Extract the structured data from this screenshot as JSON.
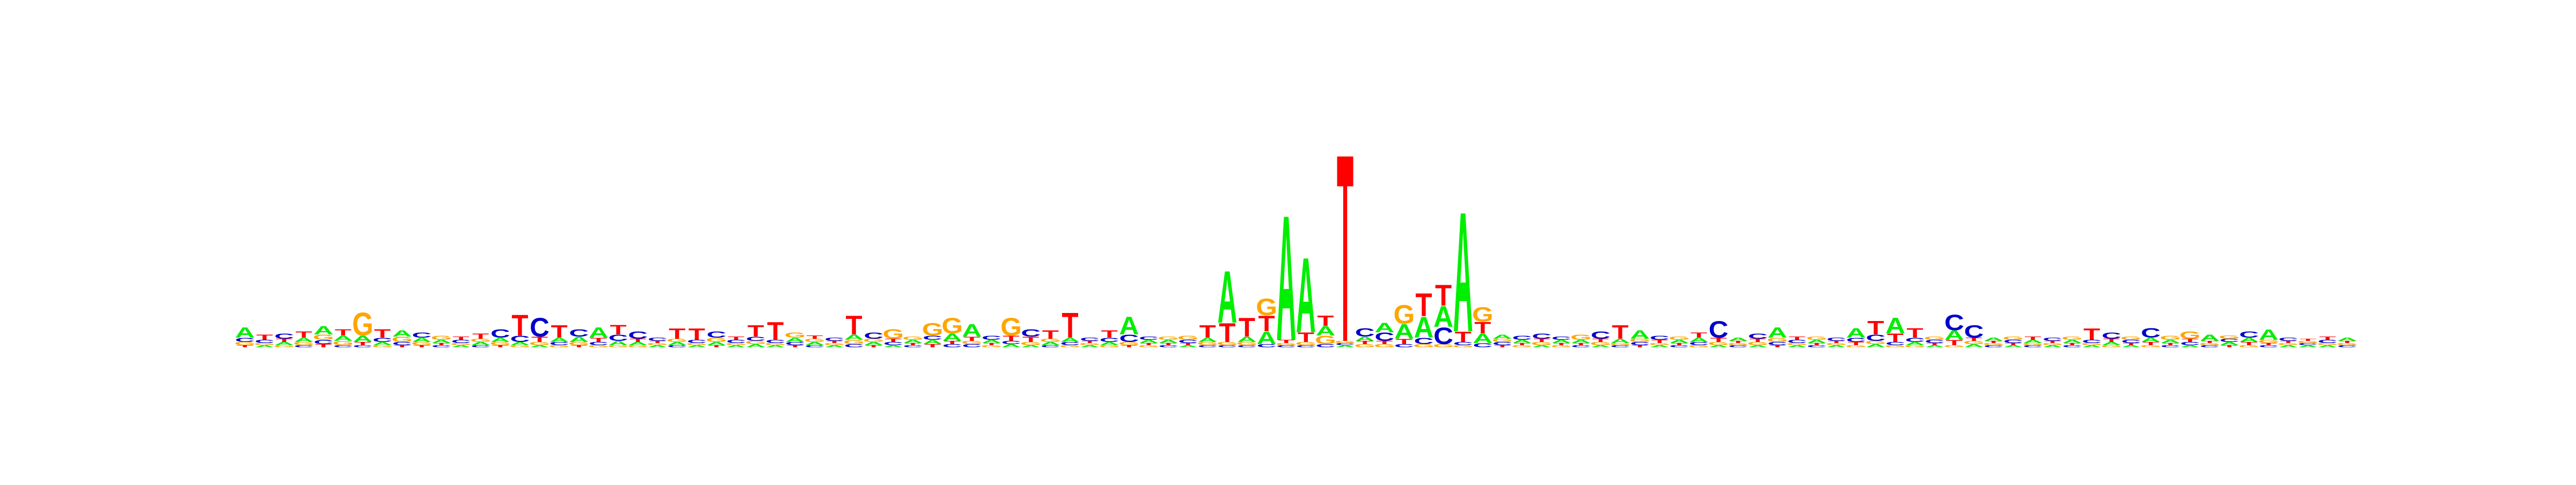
{
  "chart_data": {
    "type": "sequence-logo",
    "title": "",
    "xlabel": "",
    "ylabel": "",
    "alphabet": [
      "A",
      "C",
      "G",
      "T"
    ],
    "colors": {
      "A": "#00ee00",
      "C": "#0000cc",
      "G": "#ffa500",
      "T": "#ff0000"
    },
    "ylim": [
      0,
      2
    ],
    "columns": [
      {
        "A": 0.1,
        "C": 0.04,
        "G": 0.03,
        "T": 0.02
      },
      {
        "A": 0.02,
        "C": 0.03,
        "G": 0.02,
        "T": 0.05
      },
      {
        "A": 0.03,
        "C": 0.05,
        "G": 0.02,
        "T": 0.03
      },
      {
        "A": 0.04,
        "C": 0.02,
        "G": 0.03,
        "T": 0.06
      },
      {
        "A": 0.08,
        "C": 0.04,
        "G": 0.05,
        "T": 0.03
      },
      {
        "A": 0.05,
        "C": 0.02,
        "G": 0.04,
        "T": 0.06
      },
      {
        "A": 0.06,
        "C": 0.02,
        "G": 0.22,
        "T": 0.03
      },
      {
        "A": 0.03,
        "C": 0.04,
        "G": 0.02,
        "T": 0.08
      },
      {
        "A": 0.06,
        "C": 0.03,
        "G": 0.05,
        "T": 0.02
      },
      {
        "A": 0.04,
        "C": 0.05,
        "G": 0.03,
        "T": 0.02
      },
      {
        "A": 0.03,
        "C": 0.02,
        "G": 0.04,
        "T": 0.02
      },
      {
        "A": 0.02,
        "C": 0.03,
        "G": 0.02,
        "T": 0.03
      },
      {
        "A": 0.03,
        "C": 0.02,
        "G": 0.03,
        "T": 0.05
      },
      {
        "A": 0.04,
        "C": 0.08,
        "G": 0.03,
        "T": 0.02
      },
      {
        "A": 0.03,
        "C": 0.06,
        "G": 0.02,
        "T": 0.2
      },
      {
        "A": 0.02,
        "C": 0.18,
        "G": 0.03,
        "T": 0.05
      },
      {
        "A": 0.04,
        "C": 0.03,
        "G": 0.02,
        "T": 0.12
      },
      {
        "A": 0.05,
        "C": 0.07,
        "G": 0.03,
        "T": 0.02
      },
      {
        "A": 0.1,
        "C": 0.03,
        "G": 0.02,
        "T": 0.04
      },
      {
        "A": 0.04,
        "C": 0.06,
        "G": 0.02,
        "T": 0.09
      },
      {
        "A": 0.03,
        "C": 0.07,
        "G": 0.02,
        "T": 0.03
      },
      {
        "A": 0.02,
        "C": 0.03,
        "G": 0.02,
        "T": 0.02
      },
      {
        "A": 0.03,
        "C": 0.02,
        "G": 0.03,
        "T": 0.1
      },
      {
        "A": 0.02,
        "C": 0.03,
        "G": 0.02,
        "T": 0.11
      },
      {
        "A": 0.03,
        "C": 0.06,
        "G": 0.04,
        "T": 0.02
      },
      {
        "A": 0.02,
        "C": 0.03,
        "G": 0.02,
        "T": 0.03
      },
      {
        "A": 0.03,
        "C": 0.04,
        "G": 0.03,
        "T": 0.11
      },
      {
        "A": 0.02,
        "C": 0.03,
        "G": 0.02,
        "T": 0.17
      },
      {
        "A": 0.04,
        "C": 0.03,
        "G": 0.05,
        "T": 0.02
      },
      {
        "A": 0.03,
        "C": 0.02,
        "G": 0.03,
        "T": 0.03
      },
      {
        "A": 0.02,
        "C": 0.03,
        "G": 0.02,
        "T": 0.02
      },
      {
        "A": 0.05,
        "C": 0.03,
        "G": 0.04,
        "T": 0.18
      },
      {
        "A": 0.03,
        "C": 0.06,
        "G": 0.03,
        "T": 0.02
      },
      {
        "A": 0.02,
        "C": 0.03,
        "G": 0.09,
        "T": 0.03
      },
      {
        "A": 0.03,
        "C": 0.02,
        "G": 0.03,
        "T": 0.02
      },
      {
        "A": 0.04,
        "C": 0.04,
        "G": 0.12,
        "T": 0.03
      },
      {
        "A": 0.07,
        "C": 0.03,
        "G": 0.15,
        "T": 0.03
      },
      {
        "A": 0.12,
        "C": 0.03,
        "G": 0.03,
        "T": 0.04
      },
      {
        "A": 0.03,
        "C": 0.04,
        "G": 0.02,
        "T": 0.02
      },
      {
        "A": 0.03,
        "C": 0.03,
        "G": 0.17,
        "T": 0.05
      },
      {
        "A": 0.02,
        "C": 0.07,
        "G": 0.03,
        "T": 0.05
      },
      {
        "A": 0.03,
        "C": 0.02,
        "G": 0.03,
        "T": 0.08
      },
      {
        "A": 0.04,
        "C": 0.03,
        "G": 0.02,
        "T": 0.24
      },
      {
        "A": 0.02,
        "C": 0.03,
        "G": 0.02,
        "T": 0.02
      },
      {
        "A": 0.03,
        "C": 0.04,
        "G": 0.02,
        "T": 0.07
      },
      {
        "A": 0.17,
        "C": 0.07,
        "G": 0.03,
        "T": 0.02
      },
      {
        "A": 0.03,
        "C": 0.03,
        "G": 0.02,
        "T": 0.02
      },
      {
        "A": 0.03,
        "C": 0.02,
        "G": 0.03,
        "T": 0.02
      },
      {
        "A": 0.02,
        "C": 0.03,
        "G": 0.04,
        "T": 0.02
      },
      {
        "A": 0.04,
        "C": 0.02,
        "G": 0.03,
        "T": 0.12
      },
      {
        "A": 0.5,
        "C": 0.02,
        "G": 0.03,
        "T": 0.18
      },
      {
        "A": 0.05,
        "C": 0.02,
        "G": 0.03,
        "T": 0.18
      },
      {
        "A": 0.12,
        "C": 0.03,
        "G": 0.16,
        "T": 0.15
      },
      {
        "A": 1.2,
        "C": 0.02,
        "G": 0.02,
        "T": 0.03
      },
      {
        "A": 0.72,
        "C": 0.02,
        "G": 0.03,
        "T": 0.09
      },
      {
        "A": 0.09,
        "C": 0.03,
        "G": 0.08,
        "T": 0.1
      },
      {
        "A": 0.02,
        "C": 0.02,
        "G": 0.02,
        "T": 1.8
      },
      {
        "A": 0.04,
        "C": 0.08,
        "G": 0.03,
        "T": 0.03
      },
      {
        "A": 0.09,
        "C": 0.08,
        "G": 0.03,
        "T": 0.03
      },
      {
        "A": 0.14,
        "C": 0.03,
        "G": 0.18,
        "T": 0.05
      },
      {
        "A": 0.2,
        "C": 0.06,
        "G": 0.03,
        "T": 0.22
      },
      {
        "A": 0.2,
        "C": 0.16,
        "G": 0.03,
        "T": 0.2
      },
      {
        "A": 1.15,
        "C": 0.03,
        "G": 0.02,
        "T": 0.1
      },
      {
        "A": 0.09,
        "C": 0.04,
        "G": 0.14,
        "T": 0.11
      },
      {
        "A": 0.04,
        "C": 0.03,
        "G": 0.03,
        "T": 0.02
      },
      {
        "A": 0.03,
        "C": 0.04,
        "G": 0.02,
        "T": 0.02
      },
      {
        "A": 0.02,
        "C": 0.05,
        "G": 0.03,
        "T": 0.03
      },
      {
        "A": 0.03,
        "C": 0.03,
        "G": 0.02,
        "T": 0.02
      },
      {
        "A": 0.03,
        "C": 0.02,
        "G": 0.05,
        "T": 0.02
      },
      {
        "A": 0.02,
        "C": 0.07,
        "G": 0.03,
        "T": 0.03
      },
      {
        "A": 0.04,
        "C": 0.02,
        "G": 0.02,
        "T": 0.13
      },
      {
        "A": 0.08,
        "C": 0.03,
        "G": 0.03,
        "T": 0.02
      },
      {
        "A": 0.02,
        "C": 0.04,
        "G": 0.02,
        "T": 0.03
      },
      {
        "A": 0.03,
        "C": 0.02,
        "G": 0.03,
        "T": 0.02
      },
      {
        "A": 0.04,
        "C": 0.03,
        "G": 0.02,
        "T": 0.05
      },
      {
        "A": 0.02,
        "C": 0.16,
        "G": 0.03,
        "T": 0.04
      },
      {
        "A": 0.03,
        "C": 0.02,
        "G": 0.02,
        "T": 0.02
      },
      {
        "A": 0.02,
        "C": 0.05,
        "G": 0.03,
        "T": 0.03
      },
      {
        "A": 0.1,
        "C": 0.03,
        "G": 0.04,
        "T": 0.02
      },
      {
        "A": 0.02,
        "C": 0.03,
        "G": 0.02,
        "T": 0.03
      },
      {
        "A": 0.03,
        "C": 0.02,
        "G": 0.03,
        "T": 0.02
      },
      {
        "A": 0.02,
        "C": 0.03,
        "G": 0.02,
        "T": 0.02
      },
      {
        "A": 0.09,
        "C": 0.04,
        "G": 0.02,
        "T": 0.03
      },
      {
        "A": 0.03,
        "C": 0.06,
        "G": 0.03,
        "T": 0.13
      },
      {
        "A": 0.15,
        "C": 0.03,
        "G": 0.02,
        "T": 0.08
      },
      {
        "A": 0.03,
        "C": 0.04,
        "G": 0.02,
        "T": 0.09
      },
      {
        "A": 0.02,
        "C": 0.03,
        "G": 0.03,
        "T": 0.02
      },
      {
        "A": 0.09,
        "C": 0.15,
        "G": 0.02,
        "T": 0.05
      },
      {
        "A": 0.03,
        "C": 0.12,
        "G": 0.03,
        "T": 0.03
      },
      {
        "A": 0.03,
        "C": 0.02,
        "G": 0.02,
        "T": 0.02
      },
      {
        "A": 0.02,
        "C": 0.03,
        "G": 0.03,
        "T": 0.02
      },
      {
        "A": 0.03,
        "C": 0.02,
        "G": 0.02,
        "T": 0.03
      },
      {
        "A": 0.02,
        "C": 0.03,
        "G": 0.02,
        "T": 0.02
      },
      {
        "A": 0.03,
        "C": 0.02,
        "G": 0.03,
        "T": 0.02
      },
      {
        "A": 0.02,
        "C": 0.03,
        "G": 0.02,
        "T": 0.11
      },
      {
        "A": 0.03,
        "C": 0.06,
        "G": 0.02,
        "T": 0.03
      },
      {
        "A": 0.02,
        "C": 0.03,
        "G": 0.03,
        "T": 0.02
      },
      {
        "A": 0.04,
        "C": 0.09,
        "G": 0.02,
        "T": 0.03
      },
      {
        "A": 0.03,
        "C": 0.02,
        "G": 0.04,
        "T": 0.02
      },
      {
        "A": 0.02,
        "C": 0.03,
        "G": 0.07,
        "T": 0.03
      },
      {
        "A": 0.06,
        "C": 0.02,
        "G": 0.02,
        "T": 0.02
      },
      {
        "A": 0.03,
        "C": 0.03,
        "G": 0.03,
        "T": 0.02
      },
      {
        "A": 0.04,
        "C": 0.06,
        "G": 0.02,
        "T": 0.03
      },
      {
        "A": 0.1,
        "C": 0.02,
        "G": 0.03,
        "T": 0.02
      },
      {
        "A": 0.02,
        "C": 0.03,
        "G": 0.02,
        "T": 0.02
      },
      {
        "A": 0.02,
        "C": 0.02,
        "G": 0.02,
        "T": 0.02
      },
      {
        "A": 0.02,
        "C": 0.03,
        "G": 0.02,
        "T": 0.03
      },
      {
        "A": 0.03,
        "C": 0.02,
        "G": 0.02,
        "T": 0.02
      }
    ]
  }
}
